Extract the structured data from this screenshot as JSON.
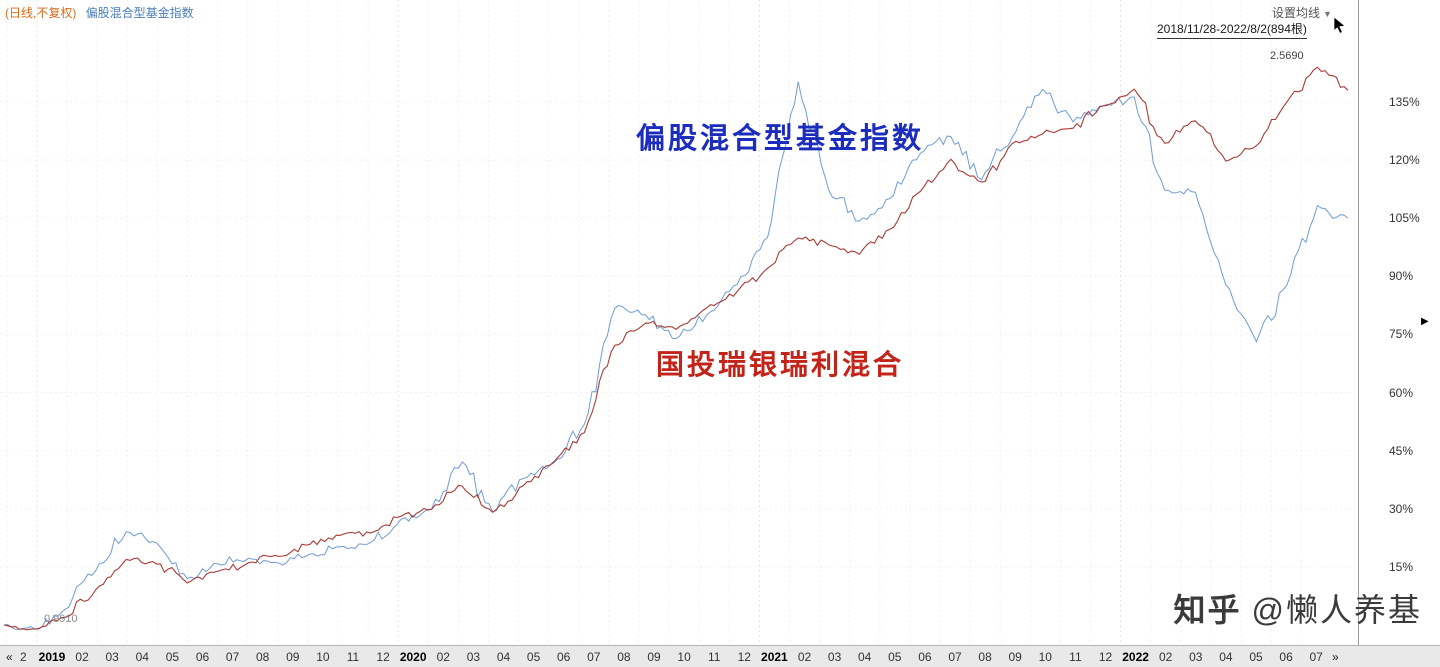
{
  "header": {
    "period_label": "(日线,不复权)",
    "symbol_title": "偏股混合型基金指数",
    "ma_setting_label": "设置均线",
    "ma_caret": "▼",
    "range_label": "2018/11/28-2022/8/2(894根)"
  },
  "x_nav": {
    "prev": "«",
    "partial_month": "2",
    "next": "»"
  },
  "edge_marker": "▶",
  "watermark": {
    "brand": "知乎",
    "handle": "@懒人养基"
  },
  "chart_data": {
    "type": "line",
    "x_labels": [
      "2019",
      "02",
      "03",
      "04",
      "05",
      "06",
      "07",
      "08",
      "09",
      "10",
      "11",
      "12",
      "2020",
      "02",
      "03",
      "04",
      "05",
      "06",
      "07",
      "08",
      "09",
      "10",
      "11",
      "12",
      "2021",
      "02",
      "03",
      "04",
      "05",
      "06",
      "07",
      "08",
      "09",
      "10",
      "11",
      "12",
      "2022",
      "02",
      "03",
      "04",
      "05",
      "06",
      "07"
    ],
    "y_unit": "%",
    "y_ticks": [
      15,
      30,
      45,
      60,
      75,
      90,
      105,
      120,
      135
    ],
    "ylim": [
      -5,
      160
    ],
    "grid": true,
    "legend_position": "overlay",
    "series": [
      {
        "name": "偏股混合型基金指数",
        "color": "#6f9cd4",
        "line_width": 1,
        "noise": 1.6,
        "values": [
          0,
          -1,
          4,
          14,
          24,
          21,
          12,
          16,
          17,
          16,
          18,
          20,
          21,
          27,
          30,
          42,
          29,
          38,
          42,
          52,
          82,
          80,
          74,
          80,
          88,
          100,
          140,
          112,
          104,
          110,
          122,
          126,
          115,
          126,
          138,
          130,
          134,
          136,
          112,
          112,
          88,
          73,
          88,
          108,
          105
        ]
      },
      {
        "name": "国投瑞银瑞利混合",
        "color": "#a83a35",
        "line_width": 1.1,
        "noise": 1.2,
        "values": [
          0,
          -1,
          2,
          9,
          17,
          16,
          11,
          14,
          16,
          18,
          21,
          23,
          24,
          28,
          30,
          36,
          29,
          36,
          42,
          50,
          72,
          78,
          76,
          82,
          86,
          92,
          100,
          98,
          96,
          102,
          112,
          120,
          114,
          124,
          127,
          128,
          134,
          138,
          124,
          130,
          120,
          124,
          135,
          144,
          138
        ]
      }
    ],
    "annotations": {
      "low": "0.9910",
      "high": "2.5690"
    }
  }
}
